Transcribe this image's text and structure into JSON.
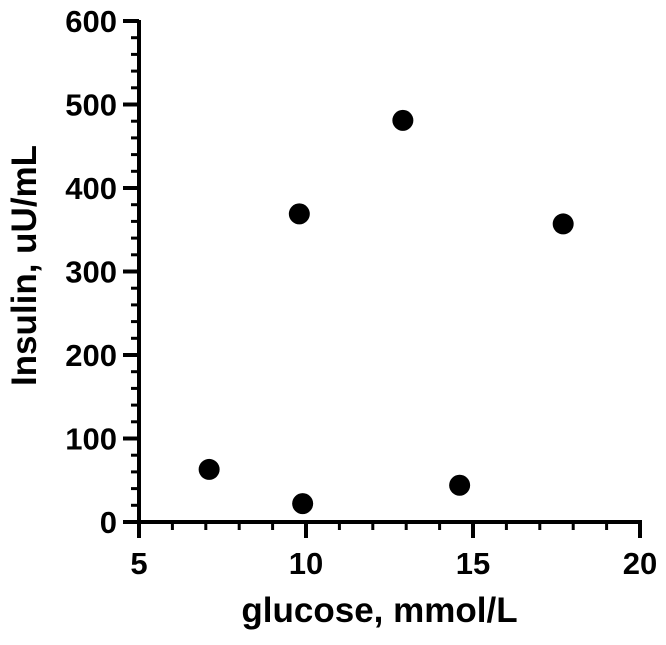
{
  "chart_data": {
    "type": "scatter",
    "title": "",
    "xlabel": "glucose, mmol/L",
    "ylabel": "Insulin, uU/mL",
    "xlim": [
      5,
      20
    ],
    "ylim": [
      0,
      600
    ],
    "x_ticks": [
      5,
      10,
      15,
      20
    ],
    "y_ticks": [
      0,
      100,
      200,
      300,
      400,
      500,
      600
    ],
    "x_minor_step": 1,
    "y_minor_step": 20,
    "grid": false,
    "legend": "none",
    "marker_color": "#000000",
    "points": [
      {
        "x": 7.1,
        "y": 63
      },
      {
        "x": 9.8,
        "y": 369
      },
      {
        "x": 9.9,
        "y": 22
      },
      {
        "x": 12.9,
        "y": 481
      },
      {
        "x": 14.6,
        "y": 44
      },
      {
        "x": 17.7,
        "y": 357
      }
    ]
  }
}
